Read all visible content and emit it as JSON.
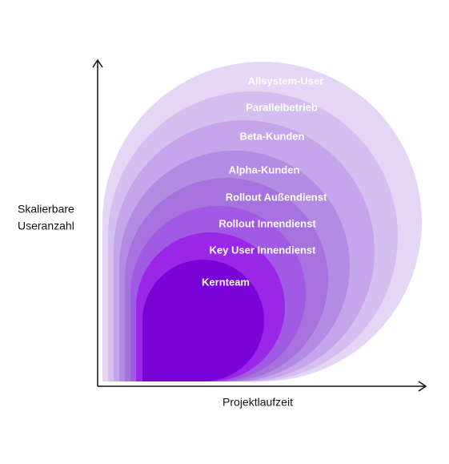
{
  "axes": {
    "y_label": [
      "Skalierbare",
      "Useranzahl"
    ],
    "x_label": "Projektlaufzeit"
  },
  "layers": [
    "Allsystem-User",
    "Parallelbetrieb",
    "Beta-Kunden",
    "Alpha-Kunden",
    "Rollout Außendienst",
    "Rollout Innendienst",
    "Key User Innendienst",
    "Kernteam"
  ]
}
